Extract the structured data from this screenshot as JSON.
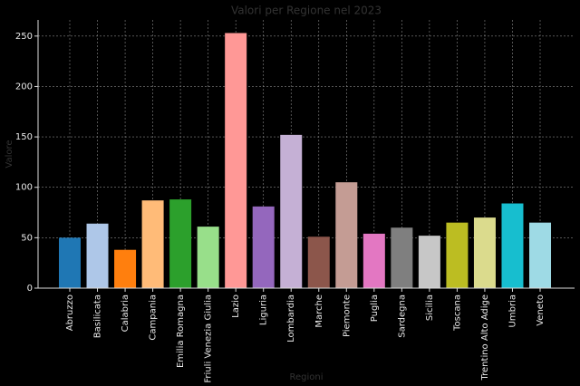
{
  "chart_data": {
    "type": "bar",
    "title": "Valori per Regione nel 2023",
    "x_label": "Regioni",
    "y_label": "Valore",
    "categories": [
      "Abruzzo",
      "Basilicata",
      "Calabria",
      "Campania",
      "Emilia Romagna",
      "Friuli Venezia Giulia",
      "Lazio",
      "Liguria",
      "Lombardia",
      "Marche",
      "Piemonte",
      "Puglia",
      "Sardegna",
      "Sicilia",
      "Toscana",
      "Trentino Alto Adige",
      "Umbria",
      "Veneto"
    ],
    "values": [
      50,
      64,
      38,
      87,
      88,
      61,
      253,
      81,
      152,
      51,
      105,
      54,
      60,
      52,
      65,
      70,
      84,
      65
    ],
    "colors": [
      "#1f77b4",
      "#aec7e8",
      "#ff7f0e",
      "#ffbb78",
      "#2ca02c",
      "#98df8a",
      "#ff9896",
      "#9467bd",
      "#c5b0d5",
      "#8c564b",
      "#c49c94",
      "#e377c2",
      "#7f7f7f",
      "#c7c7c7",
      "#bcbd22",
      "#dbdb8d",
      "#17becf",
      "#9edae5"
    ],
    "ylim": [
      0,
      266
    ],
    "yticks": [
      0,
      50,
      100,
      150,
      200,
      250
    ],
    "grid": true
  }
}
